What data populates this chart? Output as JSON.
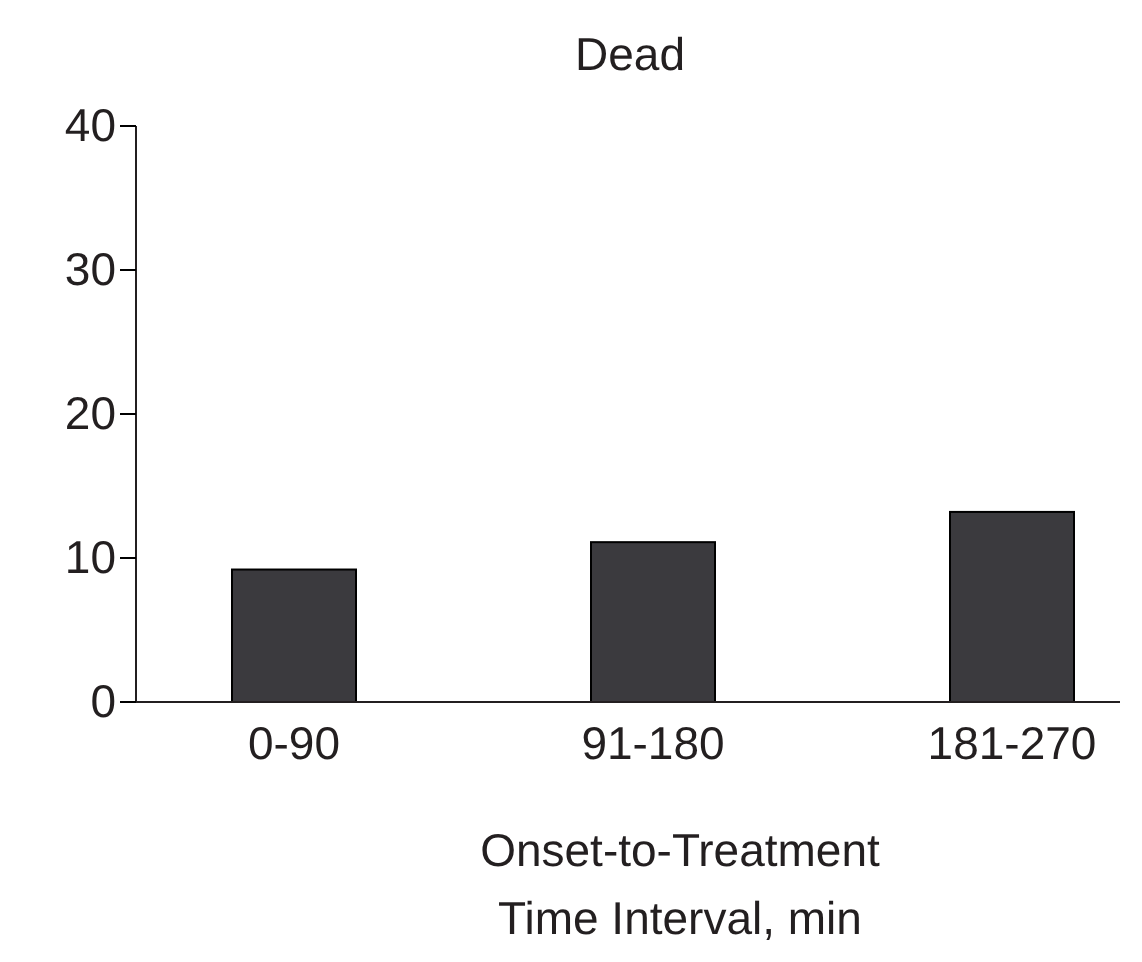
{
  "chart_data": {
    "type": "bar",
    "title": "Dead",
    "xlabel": "Onset-to-Treatment\nTime Interval, min",
    "categories": [
      "0-90",
      "91-180",
      "181-270"
    ],
    "values": [
      9.2,
      11.1,
      13.2
    ],
    "color": "#3b3a3e",
    "ylim": [
      0,
      40
    ],
    "yticks": [
      0,
      10,
      20,
      30,
      40
    ],
    "grid": false
  }
}
